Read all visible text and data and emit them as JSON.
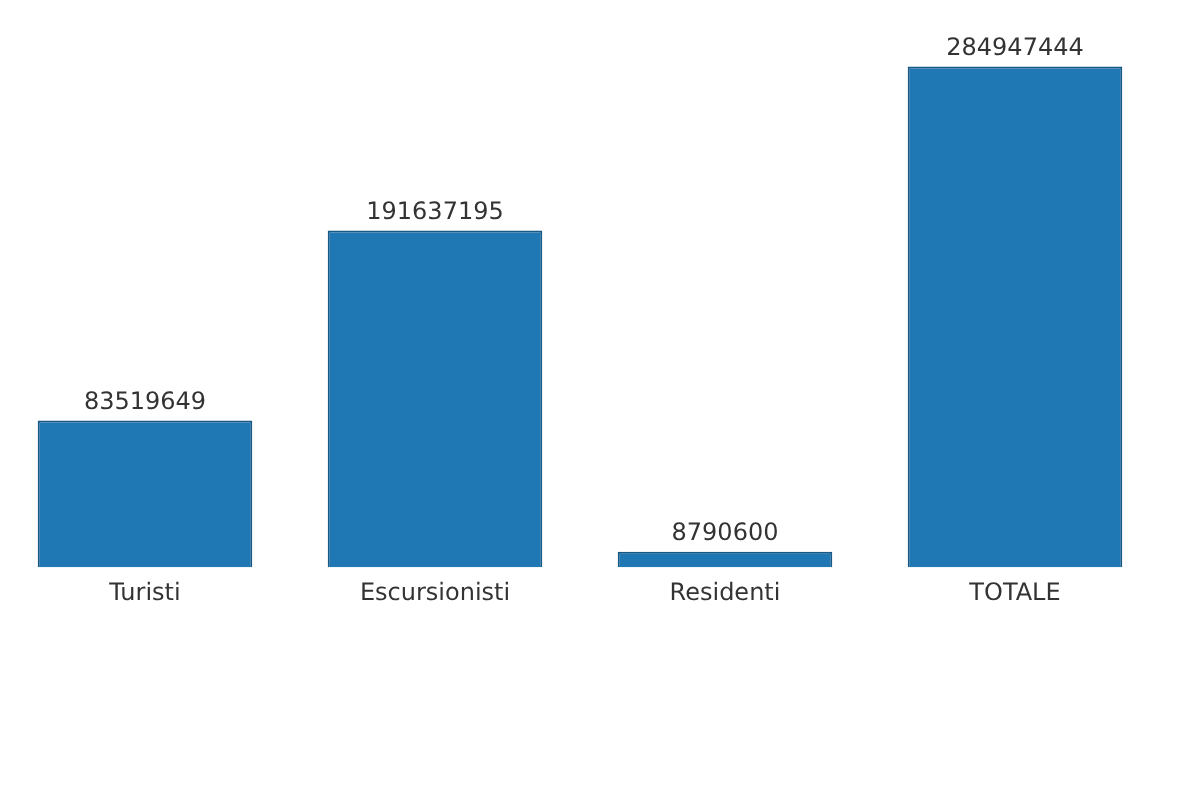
{
  "chart_data": {
    "type": "bar",
    "categories": [
      "Turisti",
      "Escursionisti",
      "Residenti",
      "TOTALE"
    ],
    "values": [
      83519649,
      191637195,
      8790600,
      284947444
    ],
    "color": "#1f77b4",
    "data_labels": true,
    "grid": false,
    "legend": false,
    "tick_labels": "x"
  }
}
